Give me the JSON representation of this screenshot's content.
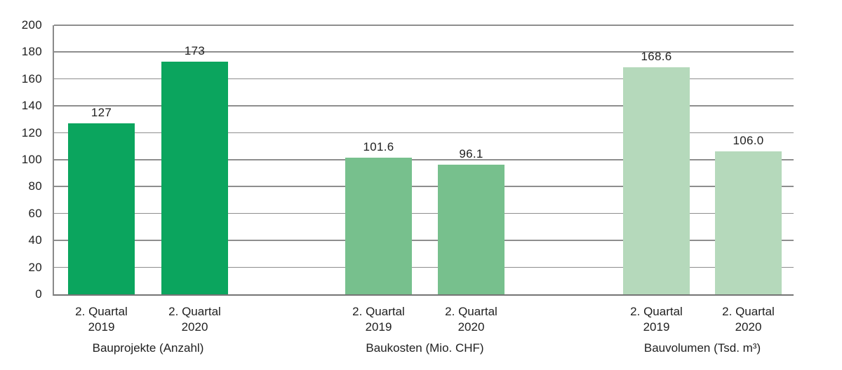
{
  "chart_data": {
    "type": "bar",
    "title": "",
    "xlabel": "",
    "ylabel": "",
    "ylim": [
      0,
      200
    ],
    "ytick_step": 20,
    "yticks": [
      0,
      20,
      40,
      60,
      80,
      100,
      120,
      140,
      160,
      180,
      200
    ],
    "grid": "horizontal-gridlines-on",
    "legend": "none",
    "background": "#ffffff",
    "gridline_color": "#8e8e8e",
    "axis_color": "#757575",
    "text_color": "#1f1f1f",
    "groups": [
      {
        "label": "Bauprojekte (Anzahl)",
        "color": "#0ba55e",
        "categories": [
          "2. Quartal 2019",
          "2. Quartal 2020"
        ],
        "values": [
          127,
          173
        ],
        "value_labels": [
          "127",
          "173"
        ]
      },
      {
        "label": "Baukosten (Mio. CHF)",
        "color": "#77c08d",
        "categories": [
          "2. Quartal 2019",
          "2. Quartal 2020"
        ],
        "values": [
          101.6,
          96.1
        ],
        "value_labels": [
          "101.6",
          "96.1"
        ]
      },
      {
        "label": "Bauvolumen (Tsd. m³)",
        "color": "#b5d9bb",
        "categories": [
          "2. Quartal 2019",
          "2. Quartal 2020"
        ],
        "values": [
          168.6,
          106.0
        ],
        "value_labels": [
          "168.6",
          "106.0"
        ]
      }
    ]
  }
}
